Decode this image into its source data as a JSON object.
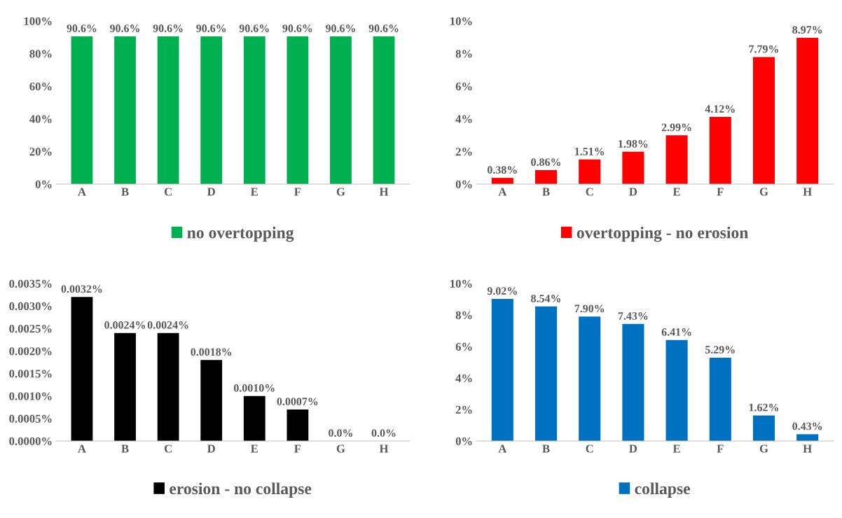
{
  "chart_data": [
    {
      "type": "bar",
      "categories": [
        "A",
        "B",
        "C",
        "D",
        "E",
        "F",
        "G",
        "H"
      ],
      "series": [
        {
          "name": "no overtopping",
          "color": "#00b050",
          "values": [
            90.6,
            90.6,
            90.6,
            90.6,
            90.6,
            90.6,
            90.6,
            90.6
          ],
          "value_labels": [
            "90.6%",
            "90.6%",
            "90.6%",
            "90.6%",
            "90.6%",
            "90.6%",
            "90.6%",
            "90.6%"
          ]
        }
      ],
      "ylim": [
        0,
        100
      ],
      "yticks": [
        {
          "value": 0,
          "label": "0%"
        },
        {
          "value": 20,
          "label": "20%"
        },
        {
          "value": 40,
          "label": "40%"
        },
        {
          "value": 60,
          "label": "60%"
        },
        {
          "value": 80,
          "label": "80%"
        },
        {
          "value": 100,
          "label": "100%"
        }
      ],
      "legend": "bottom",
      "grid": false
    },
    {
      "type": "bar",
      "categories": [
        "A",
        "B",
        "C",
        "D",
        "E",
        "F",
        "G",
        "H"
      ],
      "series": [
        {
          "name": "overtopping - no erosion",
          "color": "#ff0000",
          "values": [
            0.38,
            0.86,
            1.51,
            1.98,
            2.99,
            4.12,
            7.79,
            8.97
          ],
          "value_labels": [
            "0.38%",
            "0.86%",
            "1.51%",
            "1.98%",
            "2.99%",
            "4.12%",
            "7.79%",
            "8.97%"
          ]
        }
      ],
      "ylim": [
        0,
        10
      ],
      "yticks": [
        {
          "value": 0,
          "label": "0%"
        },
        {
          "value": 2,
          "label": "2%"
        },
        {
          "value": 4,
          "label": "4%"
        },
        {
          "value": 6,
          "label": "6%"
        },
        {
          "value": 8,
          "label": "8%"
        },
        {
          "value": 10,
          "label": "10%"
        }
      ],
      "legend": "bottom",
      "grid": false
    },
    {
      "type": "bar",
      "categories": [
        "A",
        "B",
        "C",
        "D",
        "E",
        "F",
        "G",
        "H"
      ],
      "series": [
        {
          "name": "erosion - no collapse",
          "color": "#000000",
          "values": [
            0.0032,
            0.0024,
            0.0024,
            0.0018,
            0.001,
            0.0007,
            0.0,
            0.0
          ],
          "value_labels": [
            "0.0032%",
            "0.0024%",
            "0.0024%",
            "0.0018%",
            "0.0010%",
            "0.0007%",
            "0.0%",
            "0.0%"
          ]
        }
      ],
      "ylim": [
        0,
        0.0035
      ],
      "yticks": [
        {
          "value": 0,
          "label": "0.0000%"
        },
        {
          "value": 0.0005,
          "label": "0.0005%"
        },
        {
          "value": 0.001,
          "label": "0.0010%"
        },
        {
          "value": 0.0015,
          "label": "0.0015%"
        },
        {
          "value": 0.002,
          "label": "0.0020%"
        },
        {
          "value": 0.0025,
          "label": "0.0025%"
        },
        {
          "value": 0.003,
          "label": "0.0030%"
        },
        {
          "value": 0.0035,
          "label": "0.0035%"
        }
      ],
      "legend": "bottom",
      "grid": false
    },
    {
      "type": "bar",
      "categories": [
        "A",
        "B",
        "C",
        "D",
        "E",
        "F",
        "G",
        "H"
      ],
      "series": [
        {
          "name": "collapse",
          "color": "#0070c0",
          "values": [
            9.02,
            8.54,
            7.9,
            7.43,
            6.41,
            5.29,
            1.62,
            0.43
          ],
          "value_labels": [
            "9.02%",
            "8.54%",
            "7.90%",
            "7.43%",
            "6.41%",
            "5.29%",
            "1.62%",
            "0.43%"
          ]
        }
      ],
      "ylim": [
        0,
        10
      ],
      "yticks": [
        {
          "value": 0,
          "label": "0%"
        },
        {
          "value": 2,
          "label": "2%"
        },
        {
          "value": 4,
          "label": "4%"
        },
        {
          "value": 6,
          "label": "6%"
        },
        {
          "value": 8,
          "label": "8%"
        },
        {
          "value": 10,
          "label": "10%"
        }
      ],
      "legend": "bottom",
      "grid": false
    }
  ]
}
